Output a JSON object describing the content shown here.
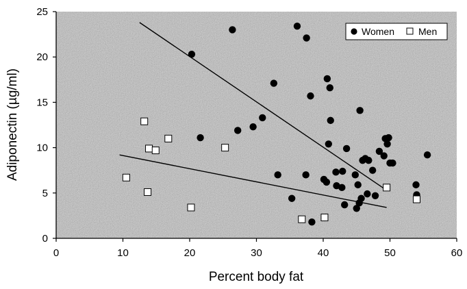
{
  "chart_data": {
    "type": "scatter",
    "xlabel": "Percent body fat",
    "ylabel": "Adiponectin (µg/ml)",
    "xlim": [
      0,
      60
    ],
    "ylim": [
      0,
      25
    ],
    "x_ticks": [
      "0",
      "10",
      "20",
      "30",
      "40",
      "50",
      "60"
    ],
    "y_ticks": [
      "0",
      "5",
      "10",
      "15",
      "20",
      "25"
    ],
    "grid": false,
    "legend_position": "top-right",
    "background": "stippled gray",
    "series": [
      {
        "name": "Women",
        "marker": "filled-circle",
        "color": "#000000",
        "points": [
          [
            20.3,
            20.3
          ],
          [
            21.6,
            11.1
          ],
          [
            26.4,
            23.0
          ],
          [
            27.2,
            11.9
          ],
          [
            29.5,
            12.3
          ],
          [
            30.9,
            13.3
          ],
          [
            32.6,
            17.1
          ],
          [
            33.2,
            7.0
          ],
          [
            35.3,
            4.4
          ],
          [
            36.1,
            23.4
          ],
          [
            37.5,
            22.1
          ],
          [
            37.4,
            7.0
          ],
          [
            38.1,
            15.7
          ],
          [
            38.3,
            1.8
          ],
          [
            40.1,
            6.5
          ],
          [
            40.5,
            6.2
          ],
          [
            40.6,
            17.6
          ],
          [
            40.8,
            10.4
          ],
          [
            41.0,
            16.6
          ],
          [
            41.1,
            13.0
          ],
          [
            41.9,
            7.3
          ],
          [
            42.0,
            5.8
          ],
          [
            42.8,
            5.6
          ],
          [
            42.9,
            7.4
          ],
          [
            43.2,
            3.7
          ],
          [
            43.5,
            9.9
          ],
          [
            44.8,
            7.0
          ],
          [
            45.0,
            3.3
          ],
          [
            45.2,
            5.9
          ],
          [
            45.4,
            3.9
          ],
          [
            45.5,
            14.1
          ],
          [
            45.7,
            4.4
          ],
          [
            45.9,
            8.6
          ],
          [
            46.3,
            8.8
          ],
          [
            46.6,
            4.9
          ],
          [
            46.8,
            8.6
          ],
          [
            47.4,
            7.5
          ],
          [
            47.8,
            4.7
          ],
          [
            48.4,
            9.6
          ],
          [
            49.1,
            9.1
          ],
          [
            49.3,
            11.0
          ],
          [
            49.6,
            10.4
          ],
          [
            49.8,
            11.1
          ],
          [
            50.0,
            8.3
          ],
          [
            50.4,
            8.3
          ],
          [
            53.9,
            5.9
          ],
          [
            54.0,
            4.8
          ],
          [
            55.6,
            9.2
          ]
        ]
      },
      {
        "name": "Men",
        "marker": "open-square",
        "color": "#ffffff",
        "points": [
          [
            10.5,
            6.7
          ],
          [
            13.2,
            12.9
          ],
          [
            13.7,
            5.1
          ],
          [
            13.9,
            9.9
          ],
          [
            14.9,
            9.7
          ],
          [
            16.8,
            11.0
          ],
          [
            20.2,
            3.4
          ],
          [
            25.3,
            10.0
          ],
          [
            36.8,
            2.1
          ],
          [
            40.2,
            2.3
          ],
          [
            49.5,
            5.6
          ],
          [
            54.0,
            4.3
          ]
        ]
      }
    ],
    "trend_lines": [
      {
        "series": "Women",
        "from": [
          12.5,
          23.8
        ],
        "to": [
          49.5,
          5.3
        ]
      },
      {
        "series": "Men",
        "from": [
          9.5,
          9.2
        ],
        "to": [
          49.5,
          3.4
        ]
      }
    ]
  }
}
